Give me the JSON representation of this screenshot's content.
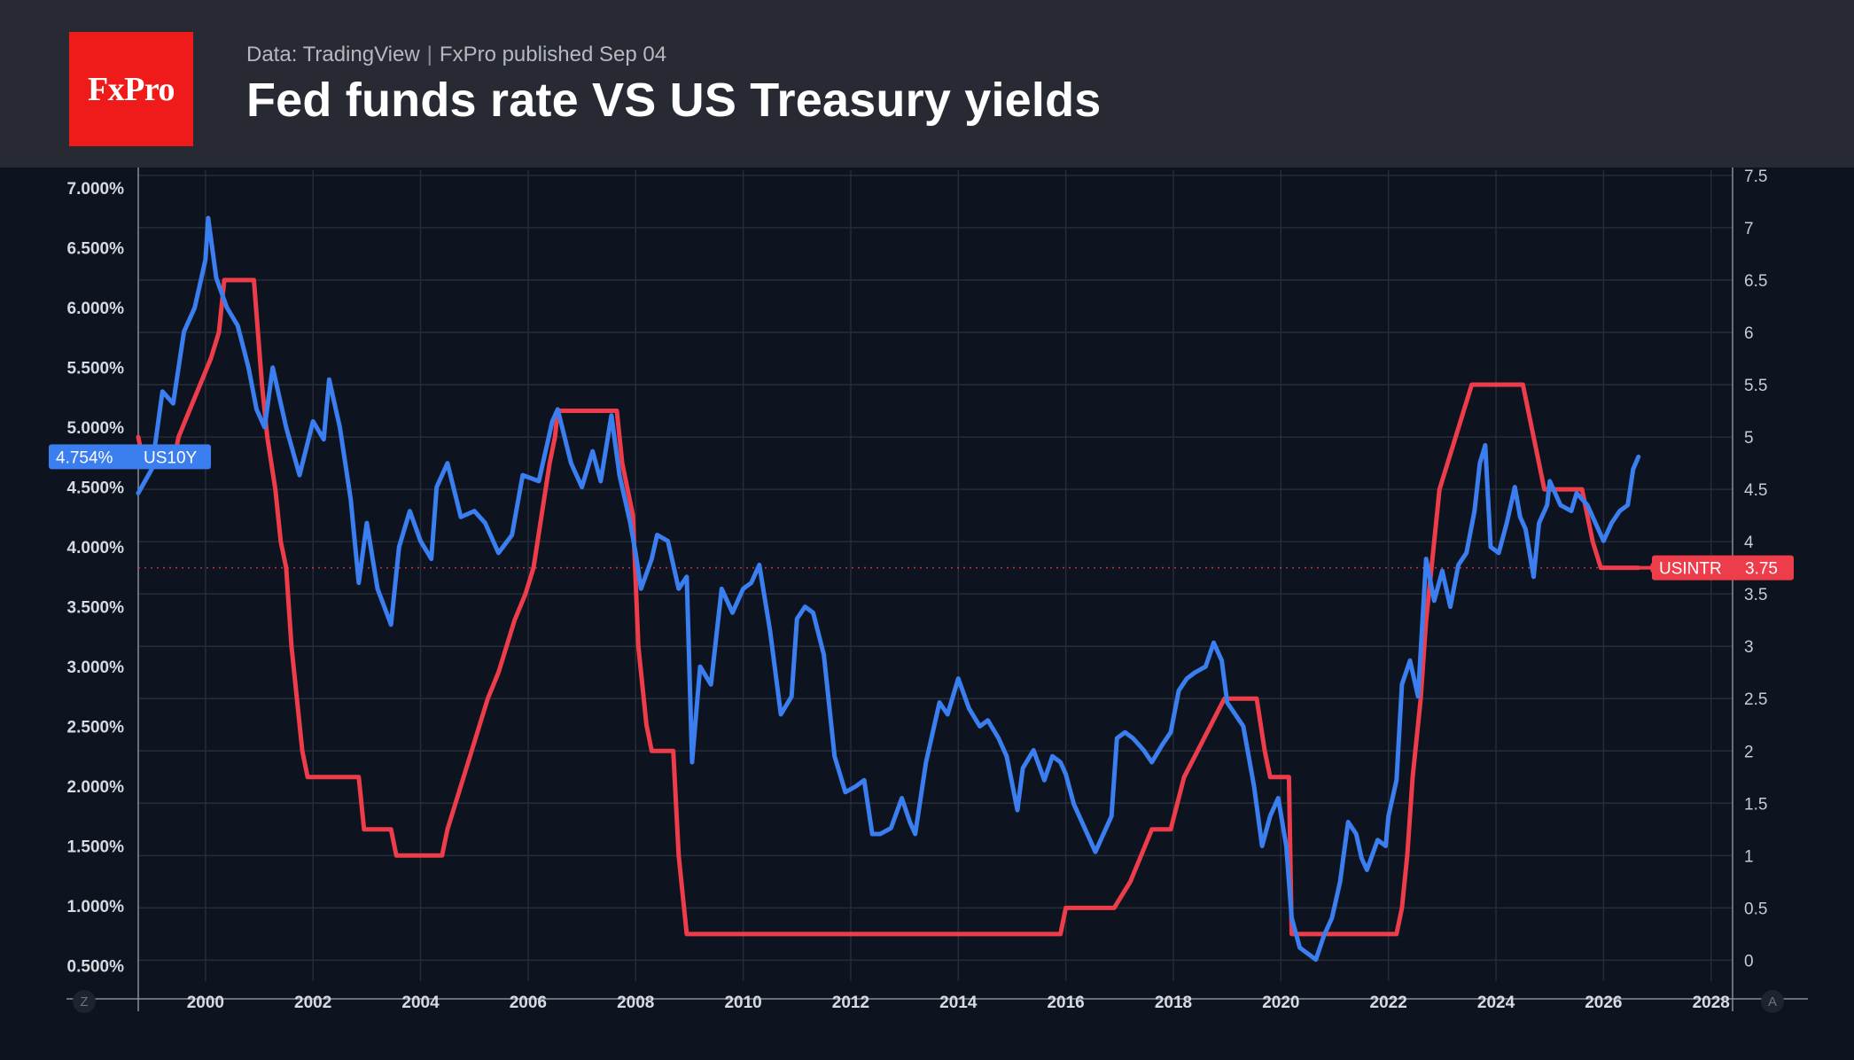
{
  "header": {
    "logo_text": "FxPro",
    "source": "Data: TradingView",
    "publisher": "FxPro published Sep 04",
    "title": "Fed funds rate VS US Treasury yields"
  },
  "colors": {
    "background": "#0d131f",
    "header_background": "#272a33",
    "logo_red": "#ef1a1a",
    "us10y_blue": "#3a7ef0",
    "usintr_red": "#ee3d4a",
    "grid": "#262c38"
  },
  "chart_data": {
    "type": "line",
    "title": "Fed funds rate VS US Treasury yields",
    "x_unit": "year",
    "x_range": [
      1998.75,
      2028.4
    ],
    "x_ticks": [
      "2000",
      "2002",
      "2004",
      "2006",
      "2008",
      "2010",
      "2012",
      "2014",
      "2016",
      "2018",
      "2020",
      "2022",
      "2024",
      "2026",
      "2028"
    ],
    "left_axis": {
      "series": "US10Y",
      "range": [
        0.37,
        7.15
      ],
      "ticks": [
        "0.500%",
        "1.000%",
        "1.500%",
        "2.000%",
        "2.500%",
        "3.000%",
        "3.500%",
        "4.000%",
        "4.500%",
        "5.000%",
        "5.500%",
        "6.000%",
        "6.500%",
        "7.000%"
      ]
    },
    "right_axis": {
      "series": "USINTR",
      "range": [
        -0.2,
        7.55
      ],
      "ticks": [
        "0",
        "0.5",
        "1",
        "1.5",
        "2",
        "2.5",
        "3",
        "3.5",
        "4",
        "4.5",
        "5",
        "5.5",
        "6",
        "6.5",
        "7",
        "7.5"
      ]
    },
    "corner_labels": {
      "left": "Z",
      "right": "A"
    },
    "series": [
      {
        "name": "US10Y",
        "axis": "left",
        "last_value_label": "4.754%",
        "points": [
          [
            1998.75,
            4.45
          ],
          [
            1999.0,
            4.65
          ],
          [
            1999.2,
            5.3
          ],
          [
            1999.4,
            5.2
          ],
          [
            1999.6,
            5.8
          ],
          [
            1999.8,
            6.0
          ],
          [
            2000.0,
            6.4
          ],
          [
            2000.05,
            6.75
          ],
          [
            2000.2,
            6.25
          ],
          [
            2000.4,
            6.0
          ],
          [
            2000.6,
            5.85
          ],
          [
            2000.8,
            5.5
          ],
          [
            2000.95,
            5.15
          ],
          [
            2001.1,
            5.0
          ],
          [
            2001.25,
            5.5
          ],
          [
            2001.5,
            5.0
          ],
          [
            2001.75,
            4.6
          ],
          [
            2002.0,
            5.05
          ],
          [
            2002.2,
            4.9
          ],
          [
            2002.3,
            5.4
          ],
          [
            2002.5,
            5.0
          ],
          [
            2002.7,
            4.4
          ],
          [
            2002.85,
            3.7
          ],
          [
            2003.0,
            4.2
          ],
          [
            2003.2,
            3.65
          ],
          [
            2003.45,
            3.35
          ],
          [
            2003.6,
            4.0
          ],
          [
            2003.8,
            4.3
          ],
          [
            2004.0,
            4.05
          ],
          [
            2004.2,
            3.9
          ],
          [
            2004.3,
            4.5
          ],
          [
            2004.5,
            4.7
          ],
          [
            2004.75,
            4.25
          ],
          [
            2005.0,
            4.3
          ],
          [
            2005.2,
            4.2
          ],
          [
            2005.45,
            3.95
          ],
          [
            2005.7,
            4.1
          ],
          [
            2005.9,
            4.6
          ],
          [
            2006.2,
            4.55
          ],
          [
            2006.45,
            5.05
          ],
          [
            2006.55,
            5.15
          ],
          [
            2006.8,
            4.7
          ],
          [
            2007.0,
            4.5
          ],
          [
            2007.2,
            4.8
          ],
          [
            2007.35,
            4.55
          ],
          [
            2007.55,
            5.1
          ],
          [
            2007.7,
            4.6
          ],
          [
            2007.9,
            4.2
          ],
          [
            2008.0,
            3.95
          ],
          [
            2008.1,
            3.65
          ],
          [
            2008.3,
            3.9
          ],
          [
            2008.4,
            4.1
          ],
          [
            2008.6,
            4.05
          ],
          [
            2008.8,
            3.65
          ],
          [
            2008.95,
            3.75
          ],
          [
            2009.05,
            2.2
          ],
          [
            2009.2,
            3.0
          ],
          [
            2009.4,
            2.85
          ],
          [
            2009.6,
            3.65
          ],
          [
            2009.8,
            3.45
          ],
          [
            2010.0,
            3.65
          ],
          [
            2010.15,
            3.7
          ],
          [
            2010.3,
            3.85
          ],
          [
            2010.5,
            3.3
          ],
          [
            2010.7,
            2.6
          ],
          [
            2010.9,
            2.75
          ],
          [
            2011.0,
            3.4
          ],
          [
            2011.15,
            3.5
          ],
          [
            2011.3,
            3.45
          ],
          [
            2011.5,
            3.1
          ],
          [
            2011.7,
            2.25
          ],
          [
            2011.9,
            1.95
          ],
          [
            2012.1,
            2.0
          ],
          [
            2012.25,
            2.05
          ],
          [
            2012.4,
            1.6
          ],
          [
            2012.55,
            1.6
          ],
          [
            2012.75,
            1.65
          ],
          [
            2012.95,
            1.9
          ],
          [
            2013.1,
            1.7
          ],
          [
            2013.2,
            1.6
          ],
          [
            2013.4,
            2.2
          ],
          [
            2013.65,
            2.7
          ],
          [
            2013.8,
            2.6
          ],
          [
            2014.0,
            2.9
          ],
          [
            2014.2,
            2.65
          ],
          [
            2014.4,
            2.5
          ],
          [
            2014.55,
            2.55
          ],
          [
            2014.75,
            2.4
          ],
          [
            2014.9,
            2.25
          ],
          [
            2015.1,
            1.8
          ],
          [
            2015.2,
            2.15
          ],
          [
            2015.4,
            2.3
          ],
          [
            2015.6,
            2.05
          ],
          [
            2015.75,
            2.25
          ],
          [
            2015.9,
            2.2
          ],
          [
            2016.0,
            2.1
          ],
          [
            2016.15,
            1.85
          ],
          [
            2016.35,
            1.65
          ],
          [
            2016.55,
            1.45
          ],
          [
            2016.7,
            1.6
          ],
          [
            2016.85,
            1.75
          ],
          [
            2016.95,
            2.4
          ],
          [
            2017.1,
            2.45
          ],
          [
            2017.25,
            2.4
          ],
          [
            2017.45,
            2.3
          ],
          [
            2017.6,
            2.2
          ],
          [
            2017.8,
            2.35
          ],
          [
            2017.95,
            2.45
          ],
          [
            2018.1,
            2.8
          ],
          [
            2018.25,
            2.9
          ],
          [
            2018.4,
            2.95
          ],
          [
            2018.6,
            3.0
          ],
          [
            2018.75,
            3.2
          ],
          [
            2018.9,
            3.05
          ],
          [
            2019.0,
            2.7
          ],
          [
            2019.15,
            2.6
          ],
          [
            2019.3,
            2.5
          ],
          [
            2019.5,
            2.0
          ],
          [
            2019.65,
            1.5
          ],
          [
            2019.8,
            1.75
          ],
          [
            2019.95,
            1.9
          ],
          [
            2020.1,
            1.5
          ],
          [
            2020.2,
            0.9
          ],
          [
            2020.35,
            0.65
          ],
          [
            2020.5,
            0.6
          ],
          [
            2020.65,
            0.55
          ],
          [
            2020.8,
            0.75
          ],
          [
            2020.95,
            0.9
          ],
          [
            2021.1,
            1.2
          ],
          [
            2021.25,
            1.7
          ],
          [
            2021.4,
            1.6
          ],
          [
            2021.5,
            1.4
          ],
          [
            2021.6,
            1.3
          ],
          [
            2021.8,
            1.55
          ],
          [
            2021.95,
            1.5
          ],
          [
            2022.0,
            1.75
          ],
          [
            2022.15,
            2.05
          ],
          [
            2022.25,
            2.85
          ],
          [
            2022.4,
            3.05
          ],
          [
            2022.55,
            2.75
          ],
          [
            2022.7,
            3.9
          ],
          [
            2022.85,
            3.55
          ],
          [
            2023.0,
            3.8
          ],
          [
            2023.15,
            3.5
          ],
          [
            2023.3,
            3.85
          ],
          [
            2023.45,
            3.95
          ],
          [
            2023.6,
            4.3
          ],
          [
            2023.7,
            4.7
          ],
          [
            2023.8,
            4.85
          ],
          [
            2023.9,
            4.0
          ],
          [
            2024.05,
            3.95
          ],
          [
            2024.2,
            4.2
          ],
          [
            2024.35,
            4.5
          ],
          [
            2024.45,
            4.25
          ],
          [
            2024.55,
            4.15
          ],
          [
            2024.7,
            3.75
          ],
          [
            2024.8,
            4.2
          ],
          [
            2024.95,
            4.35
          ],
          [
            2025.0,
            4.55
          ],
          [
            2025.2,
            4.35
          ],
          [
            2025.4,
            4.3
          ],
          [
            2025.5,
            4.45
          ],
          [
            2025.7,
            4.35
          ],
          [
            2025.85,
            4.2
          ],
          [
            2026.0,
            4.05
          ],
          [
            2026.15,
            4.2
          ],
          [
            2026.3,
            4.3
          ],
          [
            2026.45,
            4.35
          ],
          [
            2026.55,
            4.65
          ],
          [
            2026.65,
            4.754
          ]
        ]
      },
      {
        "name": "USINTR",
        "axis": "right",
        "last_value_label": "3.75",
        "points": [
          [
            1998.75,
            5.0
          ],
          [
            1998.85,
            4.75
          ],
          [
            1999.4,
            4.75
          ],
          [
            1999.5,
            5.0
          ],
          [
            1999.7,
            5.25
          ],
          [
            1999.9,
            5.5
          ],
          [
            2000.1,
            5.75
          ],
          [
            2000.25,
            6.0
          ],
          [
            2000.35,
            6.5
          ],
          [
            2000.9,
            6.5
          ],
          [
            2001.05,
            5.5
          ],
          [
            2001.15,
            5.0
          ],
          [
            2001.3,
            4.5
          ],
          [
            2001.4,
            4.0
          ],
          [
            2001.5,
            3.75
          ],
          [
            2001.6,
            3.0
          ],
          [
            2001.7,
            2.5
          ],
          [
            2001.8,
            2.0
          ],
          [
            2001.9,
            1.75
          ],
          [
            2002.85,
            1.75
          ],
          [
            2002.95,
            1.25
          ],
          [
            2003.45,
            1.25
          ],
          [
            2003.55,
            1.0
          ],
          [
            2004.4,
            1.0
          ],
          [
            2004.5,
            1.25
          ],
          [
            2004.65,
            1.5
          ],
          [
            2004.8,
            1.75
          ],
          [
            2004.95,
            2.0
          ],
          [
            2005.1,
            2.25
          ],
          [
            2005.25,
            2.5
          ],
          [
            2005.45,
            2.75
          ],
          [
            2005.6,
            3.0
          ],
          [
            2005.75,
            3.25
          ],
          [
            2005.95,
            3.5
          ],
          [
            2006.1,
            3.75
          ],
          [
            2006.25,
            4.25
          ],
          [
            2006.4,
            4.75
          ],
          [
            2006.5,
            5.0
          ],
          [
            2006.55,
            5.25
          ],
          [
            2007.65,
            5.25
          ],
          [
            2007.75,
            4.75
          ],
          [
            2007.95,
            4.25
          ],
          [
            2008.05,
            3.0
          ],
          [
            2008.2,
            2.25
          ],
          [
            2008.3,
            2.0
          ],
          [
            2008.7,
            2.0
          ],
          [
            2008.8,
            1.0
          ],
          [
            2008.95,
            0.25
          ],
          [
            2015.9,
            0.25
          ],
          [
            2016.0,
            0.5
          ],
          [
            2016.9,
            0.5
          ],
          [
            2017.2,
            0.75
          ],
          [
            2017.4,
            1.0
          ],
          [
            2017.6,
            1.25
          ],
          [
            2017.95,
            1.25
          ],
          [
            2018.2,
            1.75
          ],
          [
            2018.45,
            2.0
          ],
          [
            2018.7,
            2.25
          ],
          [
            2018.95,
            2.5
          ],
          [
            2019.55,
            2.5
          ],
          [
            2019.7,
            2.0
          ],
          [
            2019.8,
            1.75
          ],
          [
            2020.15,
            1.75
          ],
          [
            2020.2,
            0.25
          ],
          [
            2022.15,
            0.25
          ],
          [
            2022.25,
            0.5
          ],
          [
            2022.35,
            1.0
          ],
          [
            2022.45,
            1.75
          ],
          [
            2022.6,
            2.5
          ],
          [
            2022.7,
            3.25
          ],
          [
            2022.85,
            4.0
          ],
          [
            2022.95,
            4.5
          ],
          [
            2023.1,
            4.75
          ],
          [
            2023.25,
            5.0
          ],
          [
            2023.4,
            5.25
          ],
          [
            2023.55,
            5.5
          ],
          [
            2024.5,
            5.5
          ],
          [
            2024.7,
            5.0
          ],
          [
            2024.9,
            4.5
          ],
          [
            2025.6,
            4.5
          ],
          [
            2025.8,
            4.0
          ],
          [
            2025.95,
            3.75
          ],
          [
            2026.65,
            3.75
          ]
        ]
      }
    ]
  }
}
